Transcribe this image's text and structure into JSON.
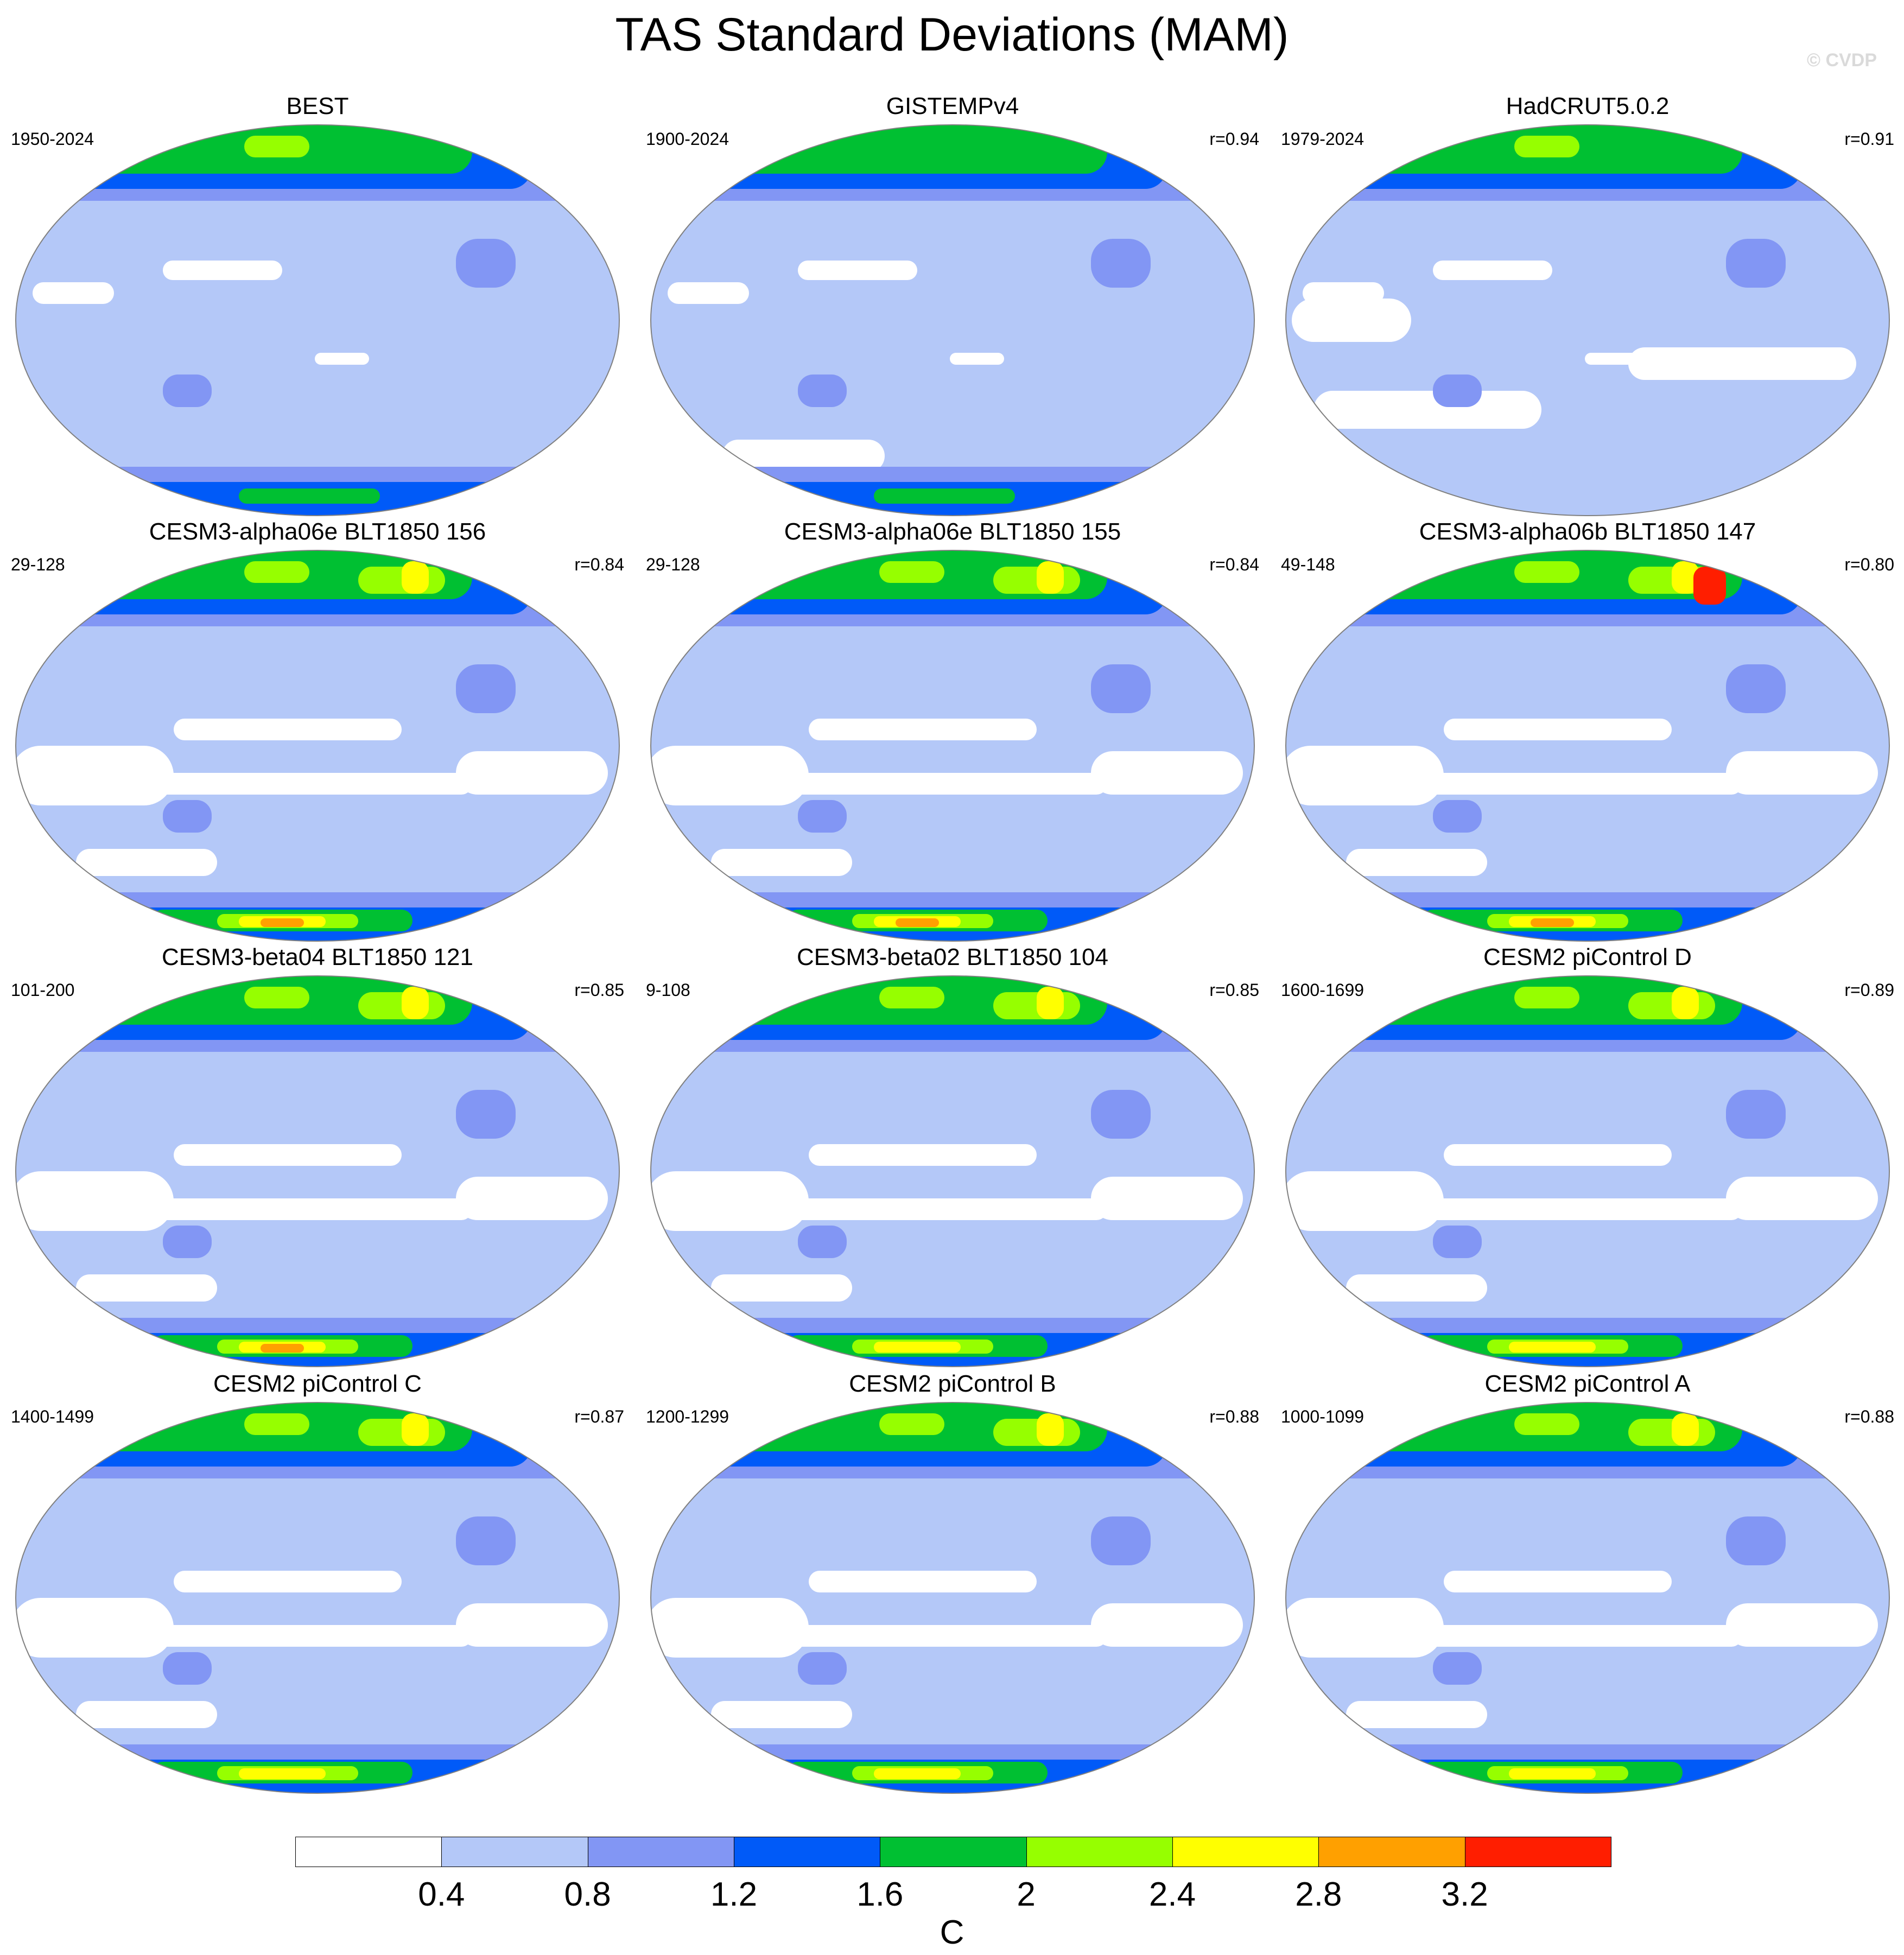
{
  "title": "TAS Standard Deviations (MAM)",
  "copyright": "© CVDP",
  "chart_data": {
    "type": "heatmap",
    "title": "TAS Standard Deviations (MAM)",
    "projection": "Robinson-like global maps, Pacific-centered",
    "units": "C",
    "levels": [
      0.4,
      0.8,
      1.2,
      1.6,
      2,
      2.4,
      2.8,
      3.2
    ],
    "level_labels": [
      "0.4",
      "0.8",
      "1.2",
      "1.6",
      "2",
      "2.4",
      "2.8",
      "3.2"
    ],
    "colors": [
      "#ffffff",
      "#b4c8f8",
      "#8296f4",
      "#005af8",
      "#00c032",
      "#96ff00",
      "#ffff00",
      "#ffa000",
      "#ff1e00"
    ],
    "panels": [
      {
        "title": "BEST",
        "years": "1950-2024",
        "r": ""
      },
      {
        "title": "GISTEMPv4",
        "years": "1900-2024",
        "r": "r=0.94"
      },
      {
        "title": "HadCRUT5.0.2",
        "years": "1979-2024",
        "r": "r=0.91"
      },
      {
        "title": "CESM3-alpha06e BLT1850 156",
        "years": "29-128",
        "r": "r=0.84"
      },
      {
        "title": "CESM3-alpha06e BLT1850 155",
        "years": "29-128",
        "r": "r=0.84"
      },
      {
        "title": "CESM3-alpha06b BLT1850 147",
        "years": "49-148",
        "r": "r=0.80"
      },
      {
        "title": "CESM3-beta04 BLT1850 121",
        "years": "101-200",
        "r": "r=0.85"
      },
      {
        "title": "CESM3-beta02 BLT1850 104",
        "years": "9-108",
        "r": "r=0.85"
      },
      {
        "title": "CESM2 piControl D",
        "years": "1600-1699",
        "r": "r=0.89"
      },
      {
        "title": "CESM2 piControl C",
        "years": "1400-1499",
        "r": "r=0.87"
      },
      {
        "title": "CESM2 piControl B",
        "years": "1200-1299",
        "r": "r=0.88"
      },
      {
        "title": "CESM2 piControl A",
        "years": "1000-1099",
        "r": "r=0.88"
      }
    ]
  }
}
